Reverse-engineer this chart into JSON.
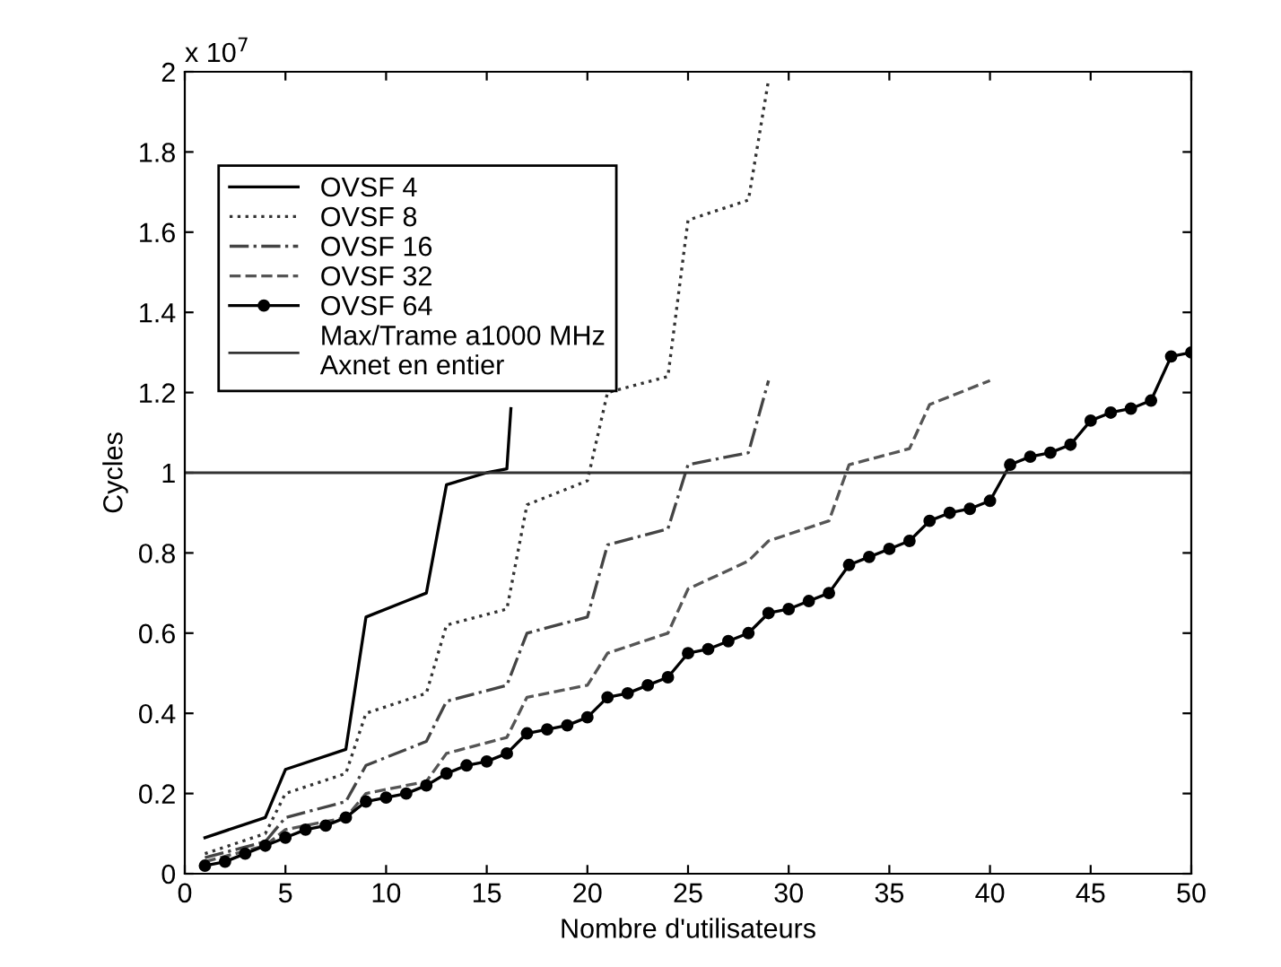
{
  "chart_data": {
    "type": "line",
    "xlabel": "Nombre d'utilisateurs",
    "ylabel": "Cycles",
    "annotations": [
      "x 10$^{7}$"
    ],
    "xlim": [
      0,
      50
    ],
    "xticks": [
      0,
      5,
      10,
      15,
      20,
      25,
      30,
      35,
      40,
      45,
      50
    ],
    "ylim": [
      0,
      2
    ],
    "yticks": [
      0,
      0.2,
      0.4,
      0.6,
      0.8,
      1,
      1.2,
      1.4,
      1.6,
      1.8,
      2
    ],
    "grid": false,
    "legend": "top left",
    "series": [
      {
        "name": "OVSF 4",
        "color": "#000000",
        "line_style": "solid",
        "marker": "none",
        "x": [
          1,
          4,
          5,
          8,
          9,
          11,
          12,
          13,
          15,
          16,
          16.2
        ],
        "values": [
          0.09,
          0.14,
          0.26,
          0.31,
          0.64,
          0.68,
          0.7,
          0.97,
          1.0,
          1.01,
          1.16
        ]
      },
      {
        "name": "OVSF 8",
        "color": "#333333",
        "line_style": "dotted",
        "marker": "none",
        "x": [
          1,
          4,
          5,
          8,
          9,
          12,
          13,
          16,
          17,
          20,
          21,
          24,
          25,
          28,
          29
        ],
        "values": [
          0.05,
          0.1,
          0.2,
          0.25,
          0.4,
          0.45,
          0.62,
          0.66,
          0.92,
          0.98,
          1.2,
          1.24,
          1.63,
          1.68,
          1.98
        ]
      },
      {
        "name": "OVSF 16",
        "color": "#444444",
        "line_style": "dashdot",
        "marker": "none",
        "x": [
          1,
          4,
          5,
          8,
          9,
          12,
          13,
          16,
          17,
          20,
          21,
          24,
          25,
          28,
          29
        ],
        "values": [
          0.04,
          0.08,
          0.14,
          0.18,
          0.27,
          0.33,
          0.43,
          0.47,
          0.6,
          0.64,
          0.82,
          0.86,
          1.02,
          1.05,
          1.23
        ]
      },
      {
        "name": "OVSF 32",
        "color": "#555555",
        "line_style": "dashed",
        "marker": "none",
        "x": [
          1,
          4,
          5,
          8,
          9,
          12,
          13,
          16,
          17,
          20,
          21,
          24,
          25,
          28,
          29,
          32,
          33,
          36,
          37,
          40
        ],
        "values": [
          0.03,
          0.07,
          0.11,
          0.14,
          0.2,
          0.23,
          0.3,
          0.34,
          0.44,
          0.47,
          0.55,
          0.6,
          0.71,
          0.78,
          0.83,
          0.88,
          1.02,
          1.06,
          1.17,
          1.23
        ]
      },
      {
        "name": "OVSF 64",
        "color": "#000000",
        "line_style": "solid",
        "marker": "circle",
        "x": [
          1,
          2,
          3,
          4,
          5,
          6,
          7,
          8,
          9,
          10,
          11,
          12,
          13,
          14,
          15,
          16,
          17,
          18,
          19,
          20,
          21,
          22,
          23,
          24,
          25,
          26,
          27,
          28,
          29,
          30,
          31,
          32,
          33,
          34,
          35,
          36,
          37,
          38,
          39,
          40,
          41,
          42,
          43,
          44,
          45,
          46,
          47,
          48,
          49,
          50
        ],
        "values": [
          0.02,
          0.03,
          0.05,
          0.07,
          0.09,
          0.11,
          0.12,
          0.14,
          0.18,
          0.19,
          0.2,
          0.22,
          0.25,
          0.27,
          0.28,
          0.3,
          0.35,
          0.36,
          0.37,
          0.39,
          0.44,
          0.45,
          0.47,
          0.49,
          0.55,
          0.56,
          0.58,
          0.6,
          0.65,
          0.66,
          0.68,
          0.7,
          0.77,
          0.79,
          0.81,
          0.83,
          0.88,
          0.9,
          0.91,
          0.93,
          1.02,
          1.04,
          1.05,
          1.07,
          1.13,
          1.15,
          1.16,
          1.18,
          1.29,
          1.3
        ]
      }
    ],
    "ref_lines": [
      {
        "axis": "y",
        "value": 1,
        "label": "Max/Trame a1000 MHz\nAxnet en entier",
        "color": "#333333",
        "line_style": "solid"
      }
    ]
  }
}
